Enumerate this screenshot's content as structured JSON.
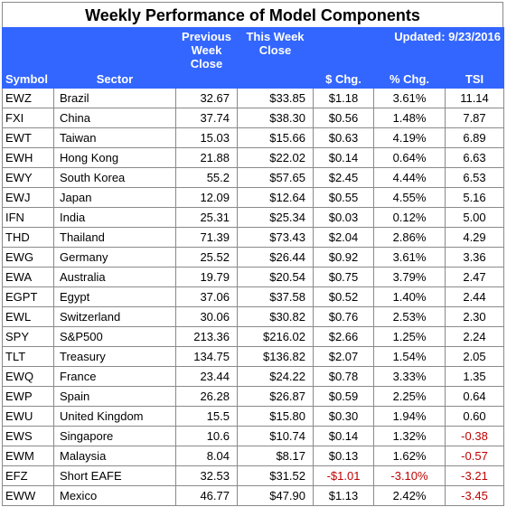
{
  "title": "Weekly Performance of Model Components",
  "updated_label": "Updated:  9/23/2016",
  "headers": {
    "symbol": "Symbol",
    "sector": "Sector",
    "prev_close": "Previous Week Close",
    "this_close": "This Week Close",
    "chg": "$ Chg.",
    "pct_chg": "% Chg.",
    "tsi": "TSI"
  },
  "colors": {
    "header_bg": "#3366ff",
    "negative": "#c00000"
  },
  "rows": [
    {
      "symbol": "EWZ",
      "sector": "Brazil",
      "prev": "32.67",
      "this": "$33.85",
      "chg": "$1.18",
      "pct": "3.61%",
      "tsi": "11.14",
      "neg": false
    },
    {
      "symbol": "FXI",
      "sector": "China",
      "prev": "37.74",
      "this": "$38.30",
      "chg": "$0.56",
      "pct": "1.48%",
      "tsi": "7.87",
      "neg": false
    },
    {
      "symbol": "EWT",
      "sector": "Taiwan",
      "prev": "15.03",
      "this": "$15.66",
      "chg": "$0.63",
      "pct": "4.19%",
      "tsi": "6.89",
      "neg": false
    },
    {
      "symbol": "EWH",
      "sector": "Hong Kong",
      "prev": "21.88",
      "this": "$22.02",
      "chg": "$0.14",
      "pct": "0.64%",
      "tsi": "6.63",
      "neg": false
    },
    {
      "symbol": "EWY",
      "sector": "South Korea",
      "prev": "55.2",
      "this": "$57.65",
      "chg": "$2.45",
      "pct": "4.44%",
      "tsi": "6.53",
      "neg": false
    },
    {
      "symbol": "EWJ",
      "sector": "Japan",
      "prev": "12.09",
      "this": "$12.64",
      "chg": "$0.55",
      "pct": "4.55%",
      "tsi": "5.16",
      "neg": false
    },
    {
      "symbol": "IFN",
      "sector": "India",
      "prev": "25.31",
      "this": "$25.34",
      "chg": "$0.03",
      "pct": "0.12%",
      "tsi": "5.00",
      "neg": false
    },
    {
      "symbol": "THD",
      "sector": "Thailand",
      "prev": "71.39",
      "this": "$73.43",
      "chg": "$2.04",
      "pct": "2.86%",
      "tsi": "4.29",
      "neg": false
    },
    {
      "symbol": "EWG",
      "sector": "Germany",
      "prev": "25.52",
      "this": "$26.44",
      "chg": "$0.92",
      "pct": "3.61%",
      "tsi": "3.36",
      "neg": false
    },
    {
      "symbol": "EWA",
      "sector": "Australia",
      "prev": "19.79",
      "this": "$20.54",
      "chg": "$0.75",
      "pct": "3.79%",
      "tsi": "2.47",
      "neg": false
    },
    {
      "symbol": "EGPT",
      "sector": "Egypt",
      "prev": "37.06",
      "this": "$37.58",
      "chg": "$0.52",
      "pct": "1.40%",
      "tsi": "2.44",
      "neg": false
    },
    {
      "symbol": "EWL",
      "sector": "Switzerland",
      "prev": "30.06",
      "this": "$30.82",
      "chg": "$0.76",
      "pct": "2.53%",
      "tsi": "2.30",
      "neg": false
    },
    {
      "symbol": "SPY",
      "sector": "S&P500",
      "prev": "213.36",
      "this": "$216.02",
      "chg": "$2.66",
      "pct": "1.25%",
      "tsi": "2.24",
      "neg": false
    },
    {
      "symbol": "TLT",
      "sector": "Treasury",
      "prev": "134.75",
      "this": "$136.82",
      "chg": "$2.07",
      "pct": "1.54%",
      "tsi": "2.05",
      "neg": false
    },
    {
      "symbol": "EWQ",
      "sector": "France",
      "prev": "23.44",
      "this": "$24.22",
      "chg": "$0.78",
      "pct": "3.33%",
      "tsi": "1.35",
      "neg": false
    },
    {
      "symbol": "EWP",
      "sector": "Spain",
      "prev": "26.28",
      "this": "$26.87",
      "chg": "$0.59",
      "pct": "2.25%",
      "tsi": "0.64",
      "neg": false
    },
    {
      "symbol": "EWU",
      "sector": "United Kingdom",
      "prev": "15.5",
      "this": "$15.80",
      "chg": "$0.30",
      "pct": "1.94%",
      "tsi": "0.60",
      "neg": false
    },
    {
      "symbol": "EWS",
      "sector": "Singapore",
      "prev": "10.6",
      "this": "$10.74",
      "chg": "$0.14",
      "pct": "1.32%",
      "tsi": "-0.38",
      "neg": false
    },
    {
      "symbol": "EWM",
      "sector": "Malaysia",
      "prev": "8.04",
      "this": "$8.17",
      "chg": "$0.13",
      "pct": "1.62%",
      "tsi": "-0.57",
      "neg": false
    },
    {
      "symbol": "EFZ",
      "sector": "Short EAFE",
      "prev": "32.53",
      "this": "$31.52",
      "chg": "-$1.01",
      "pct": "-3.10%",
      "tsi": "-3.21",
      "neg": true
    },
    {
      "symbol": "EWW",
      "sector": "Mexico",
      "prev": "46.77",
      "this": "$47.90",
      "chg": "$1.13",
      "pct": "2.42%",
      "tsi": "-3.45",
      "neg": false
    }
  ]
}
